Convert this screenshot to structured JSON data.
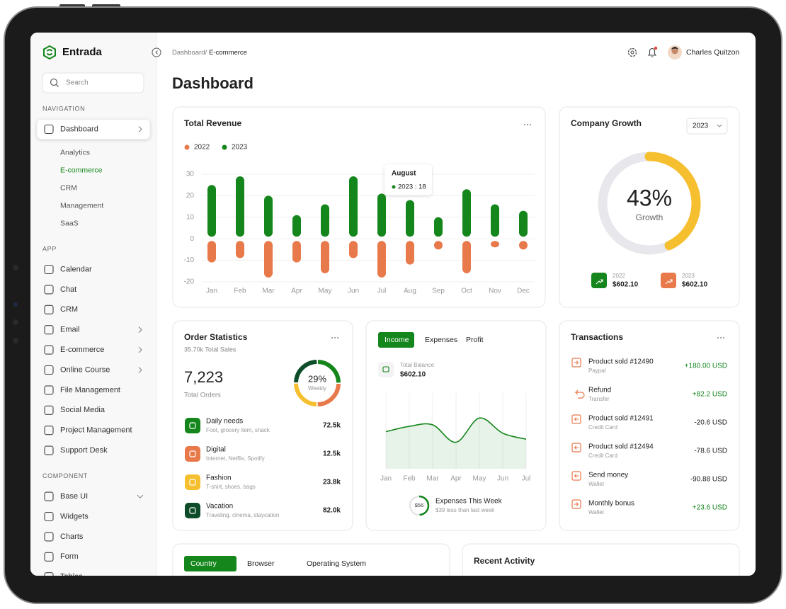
{
  "sidebar": {
    "logo": "Entrada",
    "search": "Search",
    "sections": [
      {
        "title": "NAVIGATION",
        "items": [
          {
            "label": "Dashboard",
            "active": true,
            "chevron": "right",
            "children": [
              {
                "label": "Analytics"
              },
              {
                "label": "E-commerce",
                "active": true
              },
              {
                "label": "CRM"
              },
              {
                "label": "Management"
              },
              {
                "label": "SaaS"
              }
            ]
          }
        ]
      },
      {
        "title": "APP",
        "items": [
          {
            "label": "Calendar"
          },
          {
            "label": "Chat"
          },
          {
            "label": "CRM"
          },
          {
            "label": "Email",
            "chevron": "right"
          },
          {
            "label": "E-commerce",
            "chevron": "right"
          },
          {
            "label": "Online Course",
            "chevron": "right"
          },
          {
            "label": "File Management"
          },
          {
            "label": "Social Media"
          },
          {
            "label": "Project Management"
          },
          {
            "label": "Support Desk"
          }
        ]
      },
      {
        "title": "COMPONENT",
        "items": [
          {
            "label": "Base UI",
            "chevron": "down"
          },
          {
            "label": "Widgets"
          },
          {
            "label": "Charts"
          },
          {
            "label": "Form"
          },
          {
            "label": "Tables"
          }
        ]
      }
    ]
  },
  "header": {
    "breadcrumb": [
      "Dashboard/",
      "E-commerce"
    ],
    "user": "Charles Quitzon",
    "title": "Dashboard"
  },
  "revenue_card": {
    "title": "Total Revenue",
    "chart": {
      "type": "bar",
      "categories": [
        "Jan",
        "Feb",
        "Mar",
        "Apr",
        "May",
        "Jun",
        "Jul",
        "Aug",
        "Sep",
        "Oct",
        "Nov",
        "Dec"
      ],
      "series": [
        {
          "name": "2022",
          "color": "#e8794a",
          "values": [
            -11,
            -9,
            -18,
            -11,
            -16,
            -9,
            -18,
            -12,
            -5,
            -16,
            -4,
            -5
          ]
        },
        {
          "name": "2023",
          "color": "#14861b",
          "values": [
            25,
            29,
            20,
            11,
            16,
            29,
            21,
            18,
            10,
            23,
            16,
            13
          ]
        }
      ],
      "ylim": [
        -20,
        30
      ],
      "yticks": [
        -20,
        -10,
        0,
        10,
        20,
        30
      ],
      "grid": true,
      "tooltip": {
        "title": "August",
        "label": "2023 : 18"
      }
    }
  },
  "growth_card": {
    "title": "Company Growth",
    "year": "2023",
    "chart": {
      "type": "donut",
      "value": 43,
      "value_label": "43%",
      "label": "Growth",
      "range": [
        0,
        100
      ],
      "color": "#f6bf2f"
    },
    "legend": [
      {
        "label": "2022",
        "amount": "$602.10",
        "color": "#14861b"
      },
      {
        "label": "2023",
        "amount": "$602.10",
        "color": "#e8794a"
      }
    ]
  },
  "order_card": {
    "title": "Order Statistics",
    "total_sales": "35.70k Total Sales",
    "total_orders": "7,223",
    "total_orders_label": "Total Orders",
    "weekly": {
      "value_label": "29%",
      "label": "Weekly"
    },
    "items": [
      {
        "label": "Daily needs",
        "detail": "Foot, grocery item, snack",
        "amount": "72.5k",
        "color": "#14861b"
      },
      {
        "label": "Digital",
        "detail": "Internet, Netflix, Spotify",
        "amount": "12.5k",
        "color": "#e8794a"
      },
      {
        "label": "Fashion",
        "detail": "T-shirt, shoes, bags",
        "amount": "23.8k",
        "color": "#f6bf2f"
      },
      {
        "label": "Vacation",
        "detail": "Traveling, cinema, staycation",
        "amount": "82.0k",
        "color": "#0f4d2a"
      }
    ]
  },
  "income_card": {
    "tabs": [
      {
        "label": "Income",
        "active": true
      },
      {
        "label": "Expenses"
      },
      {
        "label": "Profit"
      }
    ],
    "balance_label": "Total Balance",
    "balance": "$602.10",
    "chart": {
      "type": "area",
      "categories": [
        "Jan",
        "Feb",
        "Mar",
        "Apr",
        "May",
        "Jun",
        "Jul"
      ],
      "values": [
        49,
        56,
        58,
        35,
        67,
        47,
        39
      ],
      "ylim": [
        0,
        100
      ],
      "color": "#14861b"
    },
    "expenses": {
      "amount": "$56",
      "title": "Expenses This Week",
      "note": "$39 less than last week"
    }
  },
  "transactions_card": {
    "title": "Transactions",
    "items": [
      {
        "label": "Product sold #12490",
        "method": "Paypal",
        "amount": "+180.00 USD",
        "direction": "in"
      },
      {
        "label": "Refund",
        "method": "Transfer",
        "amount": "+82.2 USD",
        "direction": "refund"
      },
      {
        "label": "Product sold #12491",
        "method": "Credit Card",
        "amount": "-20.6 USD",
        "direction": "out"
      },
      {
        "label": "Product sold #12494",
        "method": "Credit Card",
        "amount": "-78.6 USD",
        "direction": "out"
      },
      {
        "label": "Send money",
        "method": "Wallet",
        "amount": "-90.88 USD",
        "direction": "out"
      },
      {
        "label": "Monthly bonus",
        "method": "Wallet",
        "amount": "+23.6 USD",
        "direction": "in"
      }
    ]
  },
  "location_card": {
    "tabs": [
      {
        "label": "Country",
        "active": true
      },
      {
        "label": "Browser"
      },
      {
        "label": "Operating System"
      }
    ]
  },
  "activity_card": {
    "title": "Recent Activity"
  }
}
